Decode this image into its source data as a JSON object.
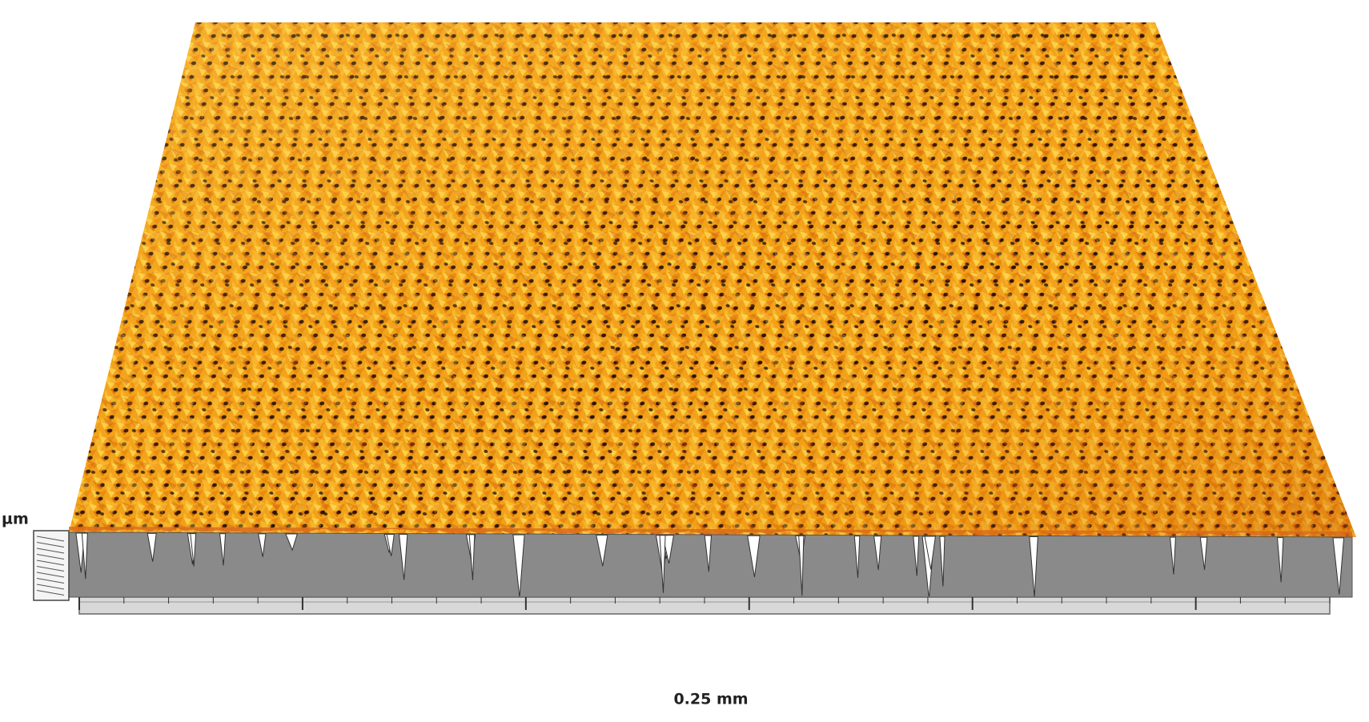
{
  "z_label": "µm",
  "x_label": "0.25 mm"
}
